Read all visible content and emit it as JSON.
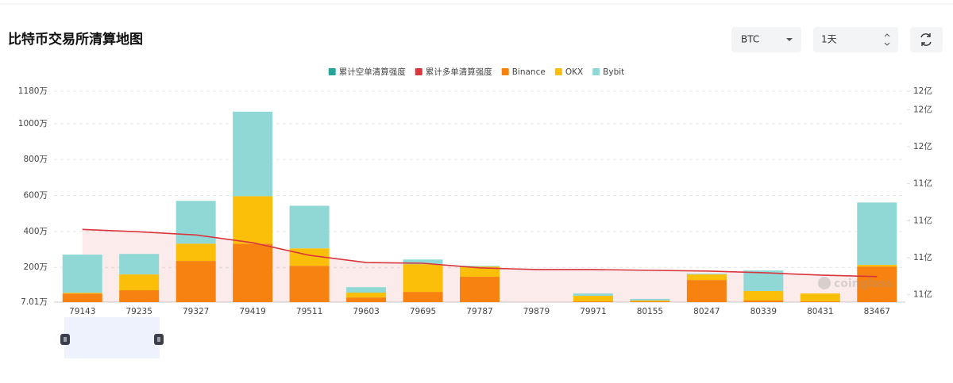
{
  "controls": {
    "symbol": "BTC",
    "interval": "1天"
  },
  "chart_data": {
    "type": "bar",
    "title": "比特币交易所清算地图",
    "watermark": "coinglass",
    "categories": [
      "79143",
      "79235",
      "79327",
      "79419",
      "79511",
      "79603",
      "79695",
      "79787",
      "79879",
      "79971",
      "80155",
      "80247",
      "80339",
      "80431",
      "83467"
    ],
    "series": [
      {
        "name": "累计空单清算强度",
        "type": "line",
        "axis": "y2",
        "color": "#26a69a",
        "values": [
          null,
          null,
          null,
          null,
          null,
          null,
          null,
          null,
          null,
          null,
          null,
          null,
          null,
          null,
          null
        ]
      },
      {
        "name": "累计多单清算强度",
        "type": "line",
        "axis": "y2",
        "color": "#d9363e",
        "values": [
          11.153,
          11.14,
          11.123,
          11.081,
          11.013,
          10.974,
          10.97,
          10.945,
          10.936,
          10.936,
          10.932,
          10.928,
          10.919,
          10.906,
          10.898
        ]
      },
      {
        "name": "Binance",
        "color": "#f7820f",
        "values": [
          55,
          73,
          236,
          332,
          209,
          33,
          64,
          148,
          0,
          11,
          11,
          130,
          16,
          11,
          205
        ]
      },
      {
        "name": "OKX",
        "color": "#fbbf0a",
        "values": [
          4,
          88,
          96,
          264,
          97,
          27,
          154,
          57,
          0,
          31,
          5,
          31,
          53,
          44,
          9
        ]
      },
      {
        "name": "Bybit",
        "color": "#8fd8d6",
        "values": [
          212,
          114,
          238,
          470,
          237,
          30,
          26,
          4,
          0,
          13,
          9,
          4,
          114,
          0,
          347
        ]
      }
    ],
    "ylim": [
      7.01,
      1180
    ],
    "yticks": [
      {
        "value": 7.01,
        "label": "7.01万"
      },
      {
        "value": 200,
        "label": "200万"
      },
      {
        "value": 400,
        "label": "400万"
      },
      {
        "value": 600,
        "label": "600万"
      },
      {
        "value": 800,
        "label": "800万"
      },
      {
        "value": 1000,
        "label": "1000万"
      },
      {
        "value": 1180,
        "label": "1180万"
      }
    ],
    "y2lim": [
      10.76,
      11.9
    ],
    "y2ticks": [
      {
        "value": 10.8,
        "label": "11亿"
      },
      {
        "value": 11.0,
        "label": "11亿"
      },
      {
        "value": 11.2,
        "label": "11亿"
      },
      {
        "value": 11.4,
        "label": "11亿"
      },
      {
        "value": 11.6,
        "label": "12亿"
      },
      {
        "value": 11.8,
        "label": "12亿"
      },
      {
        "value": 11.9,
        "label": "12亿"
      }
    ],
    "grid": true,
    "legend": "top"
  }
}
